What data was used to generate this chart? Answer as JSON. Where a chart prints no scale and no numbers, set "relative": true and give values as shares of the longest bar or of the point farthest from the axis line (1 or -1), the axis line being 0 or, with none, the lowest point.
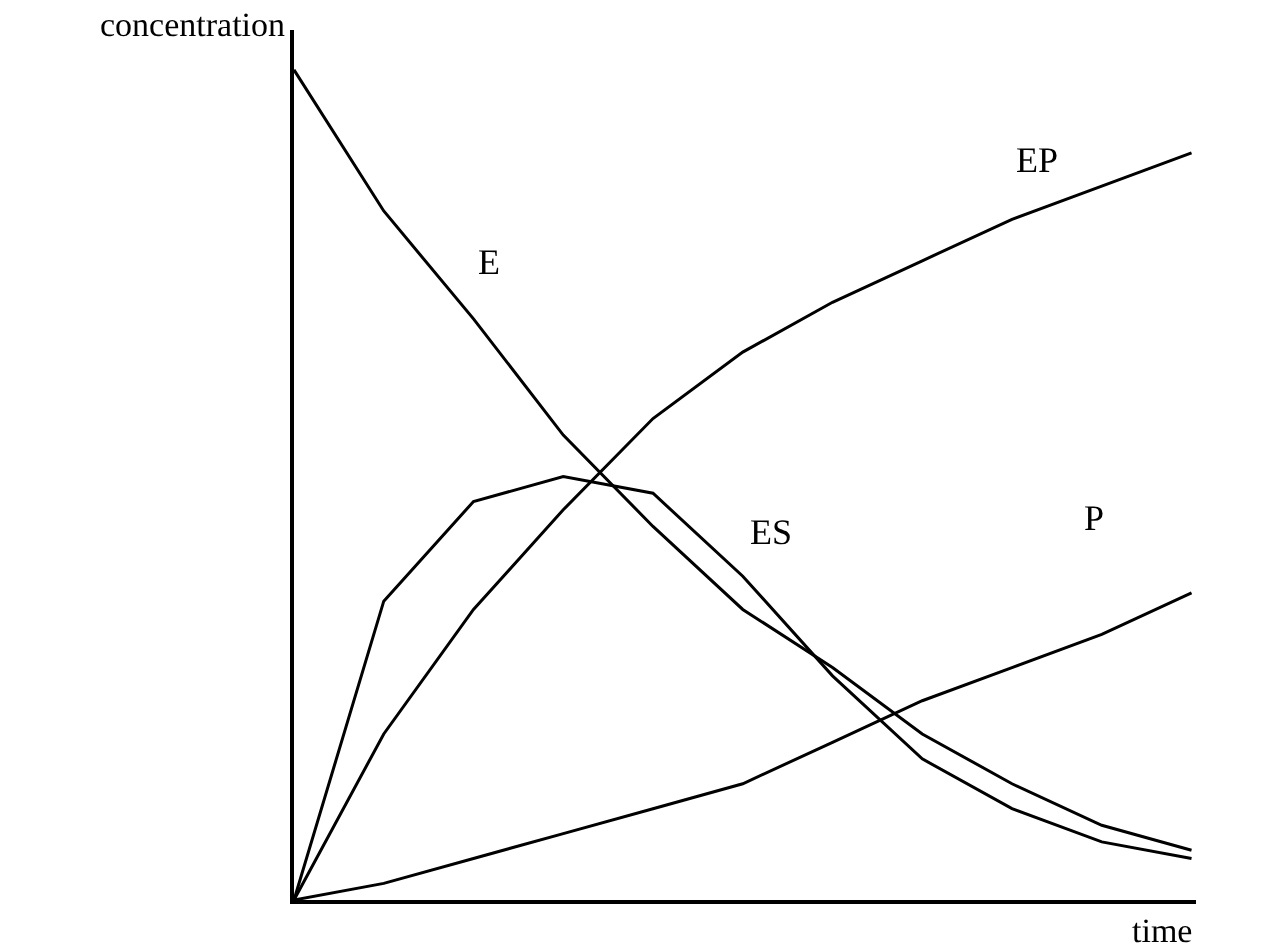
{
  "chart_data": {
    "type": "line",
    "relative": true,
    "xlabel": "time",
    "ylabel": "concentration",
    "legend": false,
    "marker": "none",
    "line_style": "solid",
    "categories": [
      null,
      null,
      null,
      null,
      null,
      null,
      null,
      null,
      null,
      null,
      null
    ],
    "series": [
      {
        "name": "E",
        "color": "#000000",
        "values": [
          1.0,
          0.83,
          0.7,
          0.56,
          0.45,
          0.35,
          0.28,
          0.2,
          0.14,
          0.09,
          0.06
        ]
      },
      {
        "name": "EP",
        "color": "#000000",
        "values": [
          0,
          0.2,
          0.35,
          0.47,
          0.58,
          0.66,
          0.72,
          0.77,
          0.82,
          0.86,
          0.9
        ]
      },
      {
        "name": "ES",
        "color": "#000000",
        "values": [
          0,
          0.36,
          0.48,
          0.51,
          0.49,
          0.39,
          0.27,
          0.17,
          0.11,
          0.07,
          0.05
        ]
      },
      {
        "name": "P",
        "color": "#000000",
        "values": [
          0,
          0.02,
          0.05,
          0.08,
          0.11,
          0.14,
          0.19,
          0.24,
          0.28,
          0.32,
          0.37
        ]
      }
    ]
  }
}
